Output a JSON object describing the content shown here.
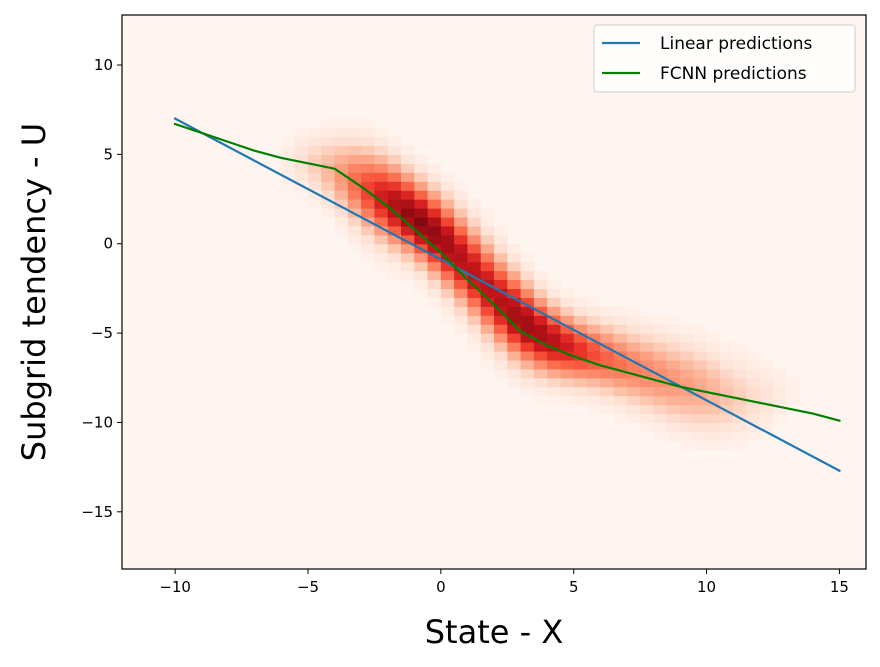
{
  "chart_data": {
    "type": "line",
    "title": "",
    "xlabel": "State - X",
    "ylabel": "Subgrid tendency - U",
    "xlim": [
      -12,
      16
    ],
    "ylim": [
      -18.2,
      12.8
    ],
    "xticks": [
      -10,
      -5,
      0,
      5,
      10,
      15
    ],
    "yticks": [
      10,
      5,
      0,
      -5,
      -10,
      -15
    ],
    "grid": false,
    "legend": "top-right",
    "colors": {
      "linear": "#1f77b4",
      "fcnn": "#008000",
      "heatmap_low": "#fff5f0",
      "heatmap_high": "#67000d"
    },
    "series": [
      {
        "name": "Linear predictions",
        "color": "#1f77b4",
        "x": [
          -10,
          15
        ],
        "y": [
          7.0,
          -12.7
        ]
      },
      {
        "name": "FCNN predictions",
        "color": "#008000",
        "x": [
          -10,
          -9,
          -8,
          -7,
          -6,
          -5,
          -4,
          -3,
          -2,
          -1,
          0,
          1,
          2,
          3,
          4,
          5,
          6,
          7,
          8,
          9,
          10,
          11,
          12,
          13,
          14,
          15
        ],
        "y": [
          6.7,
          6.2,
          5.7,
          5.2,
          4.8,
          4.5,
          4.2,
          3.2,
          2.1,
          0.8,
          -0.5,
          -2.0,
          -3.4,
          -4.9,
          -5.7,
          -6.3,
          -6.8,
          -7.2,
          -7.6,
          -8.0,
          -8.3,
          -8.6,
          -8.9,
          -9.2,
          -9.5,
          -9.9
        ]
      }
    ],
    "heatmap": {
      "description_free": true,
      "density_ridge": [
        {
          "x": -5,
          "center": 4.6,
          "spread": 1.0,
          "peak": 0.15
        },
        {
          "x": -4,
          "center": 4.0,
          "spread": 1.3,
          "peak": 0.3
        },
        {
          "x": -3,
          "center": 3.2,
          "spread": 1.5,
          "peak": 0.55
        },
        {
          "x": -2,
          "center": 2.4,
          "spread": 1.5,
          "peak": 0.8
        },
        {
          "x": -1,
          "center": 1.5,
          "spread": 1.4,
          "peak": 0.95
        },
        {
          "x": 0,
          "center": 0.3,
          "spread": 1.5,
          "peak": 0.9
        },
        {
          "x": 1,
          "center": -1.2,
          "spread": 1.6,
          "peak": 0.8
        },
        {
          "x": 2,
          "center": -2.9,
          "spread": 1.6,
          "peak": 0.8
        },
        {
          "x": 3,
          "center": -4.3,
          "spread": 1.5,
          "peak": 0.9
        },
        {
          "x": 4,
          "center": -5.3,
          "spread": 1.3,
          "peak": 0.85
        },
        {
          "x": 5,
          "center": -5.9,
          "spread": 1.2,
          "peak": 0.7
        },
        {
          "x": 6,
          "center": -6.3,
          "spread": 1.2,
          "peak": 0.55
        },
        {
          "x": 7,
          "center": -6.8,
          "spread": 1.3,
          "peak": 0.45
        },
        {
          "x": 8,
          "center": -7.3,
          "spread": 1.4,
          "peak": 0.4
        },
        {
          "x": 9,
          "center": -7.8,
          "spread": 1.5,
          "peak": 0.35
        },
        {
          "x": 10,
          "center": -8.2,
          "spread": 1.5,
          "peak": 0.3
        },
        {
          "x": 11,
          "center": -8.6,
          "spread": 1.4,
          "peak": 0.2
        },
        {
          "x": 12,
          "center": -8.6,
          "spread": 1.3,
          "peak": 0.12
        },
        {
          "x": 13,
          "center": -8.4,
          "spread": 1.0,
          "peak": 0.05
        }
      ]
    }
  }
}
